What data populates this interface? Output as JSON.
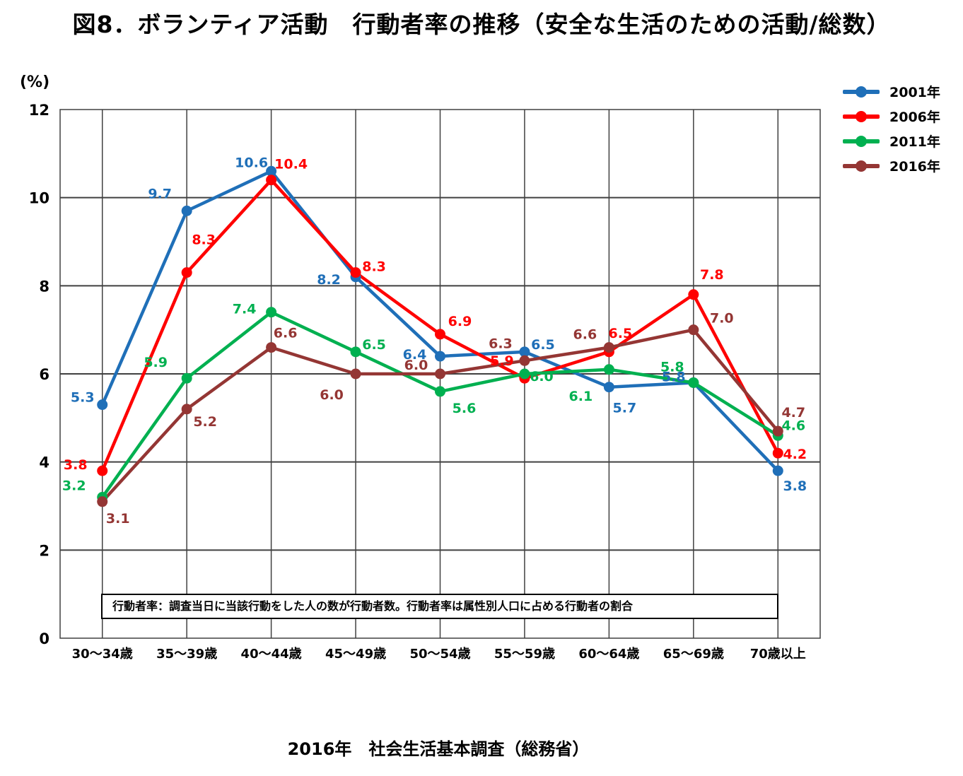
{
  "header": {
    "title": "図8．ボランティア活動　行動者率の推移（安全な生活のための活動/総数）",
    "unit": "(%)",
    "source": "2016年　社会生活基本調査（総務省）",
    "note": "行動者率：調査当日に当該行動をした人の数が行動者数。行動者率は属性別人口に占める行動者の割合"
  },
  "chart_data": {
    "type": "line",
    "title": "図8．ボランティア活動　行動者率の推移（安全な生活のための活動/総数）",
    "xlabel": "",
    "ylabel": "(%)",
    "ylim": [
      0,
      12
    ],
    "yticks": [
      0,
      2,
      4,
      6,
      8,
      10,
      12
    ],
    "grid": true,
    "legend_position": "top-right",
    "categories": [
      "30～34歳",
      "35～39歳",
      "40～44歳",
      "45～49歳",
      "50～54歳",
      "55～59歳",
      "60～64歳",
      "65～69歳",
      "70歳以上"
    ],
    "series": [
      {
        "name": "2001年",
        "color": "#1f6fb8",
        "values": [
          5.3,
          9.7,
          10.6,
          8.2,
          6.4,
          6.5,
          5.7,
          5.8,
          3.8
        ]
      },
      {
        "name": "2006年",
        "color": "#ff0000",
        "values": [
          3.8,
          8.3,
          10.4,
          8.3,
          6.9,
          5.9,
          6.5,
          7.8,
          4.2
        ]
      },
      {
        "name": "2011年",
        "color": "#00b050",
        "values": [
          3.2,
          5.9,
          7.4,
          6.5,
          5.6,
          6.0,
          6.1,
          5.8,
          4.6
        ]
      },
      {
        "name": "2016年",
        "color": "#943634",
        "values": [
          3.1,
          5.2,
          6.6,
          6.0,
          6.0,
          6.3,
          6.6,
          7.0,
          4.7
        ]
      }
    ]
  }
}
